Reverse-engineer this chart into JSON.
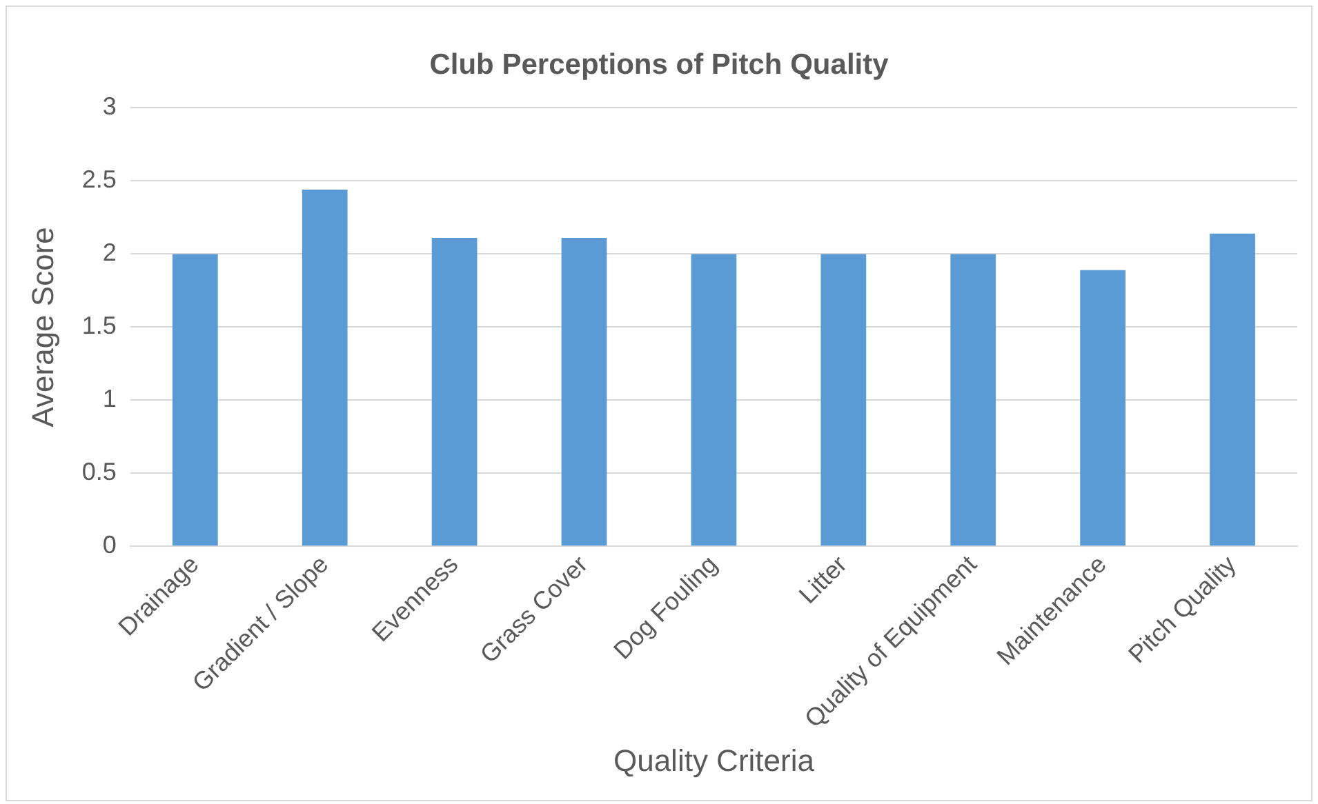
{
  "chart_data": {
    "type": "bar",
    "title": "Club Perceptions of Pitch Quality",
    "xlabel": "Quality Criteria",
    "ylabel": "Average Score",
    "categories": [
      "Drainage",
      "Gradient / Slope",
      "Evenness",
      "Grass Cover",
      "Dog Fouling",
      "Litter",
      "Quality of Equipment",
      "Maintenance",
      "Pitch Quality"
    ],
    "values": [
      2.0,
      2.44,
      2.11,
      2.11,
      2.0,
      2.0,
      2.0,
      1.89,
      2.14
    ],
    "color": "#5b9bd5",
    "ylim": [
      0,
      3
    ],
    "yticks": [
      0,
      0.5,
      1,
      1.5,
      2,
      2.5,
      3
    ],
    "grid": "y",
    "legend": false
  }
}
